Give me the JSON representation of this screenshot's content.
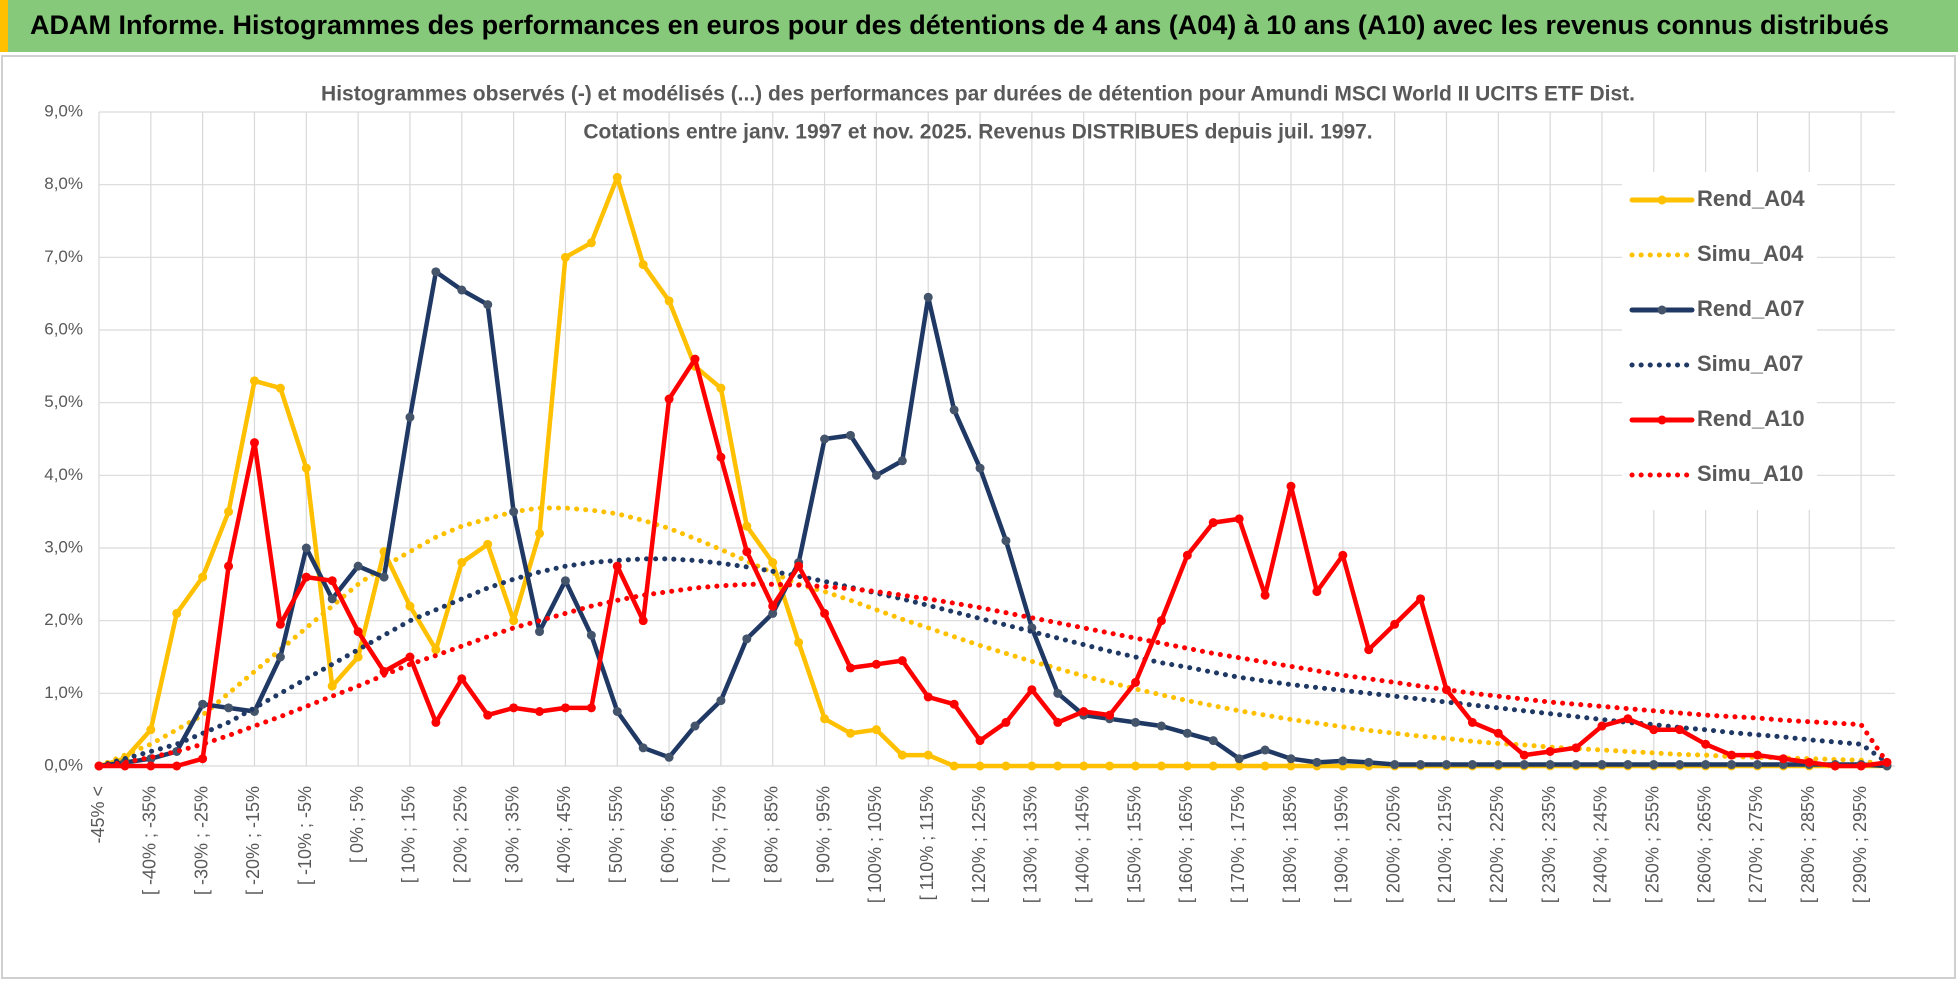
{
  "page_title": "ADAM Informe. Histogrammes des performances en euros pour des détentions de 4 ans (A04) à 10 ans (A10) avec les revenus connus distribués",
  "chart_data": {
    "type": "line",
    "title": "Histogrammes observés (-) et modélisés (...) des performances par durées de détention pour Amundi MSCI World II UCITS ETF Dist.",
    "subtitle": "Cotations entre janv. 1997 et nov. 2025. Revenus DISTRIBUES depuis juil. 1997.",
    "categories": [
      "-45% <",
      null,
      "[ -40% ; -35%",
      null,
      "[ -30% ; -25%",
      null,
      "[ -20% ; -15%",
      null,
      "[ -10% ; -5%",
      null,
      "[ 0% ; 5%",
      null,
      "[ 10% ; 15%",
      null,
      "[ 20% ; 25%",
      null,
      "[ 30% ; 35%",
      null,
      "[ 40% ; 45%",
      null,
      "[ 50% ; 55%",
      null,
      "[ 60% ; 65%",
      null,
      "[ 70% ; 75%",
      null,
      "[ 80% ; 85%",
      null,
      "[ 90% ; 95%",
      null,
      "[ 100% ; 105%",
      null,
      "[ 110% ; 115%",
      null,
      "[ 120% ; 125%",
      null,
      "[ 130% ; 135%",
      null,
      "[ 140% ; 145%",
      null,
      "[ 150% ; 155%",
      null,
      "[ 160% ; 165%",
      null,
      "[ 170% ; 175%",
      null,
      "[ 180% ; 185%",
      null,
      "[ 190% ; 195%",
      null,
      "[ 200% ; 205%",
      null,
      "[ 210% ; 215%",
      null,
      "[ 220% ; 225%",
      null,
      "[ 230% ; 235%",
      null,
      "[ 240% ; 245%",
      null,
      "[ 250% ; 255%",
      null,
      "[ 260% ; 265%",
      null,
      "[ 270% ; 275%",
      null,
      "[ 280% ; 285%",
      null,
      "[ 290% ; 295%",
      null
    ],
    "ylim": [
      0,
      9
    ],
    "yticks": [
      {
        "value": 0,
        "label": "0,0%"
      },
      {
        "value": 1,
        "label": "1,0%"
      },
      {
        "value": 2,
        "label": "2,0%"
      },
      {
        "value": 3,
        "label": "3,0%"
      },
      {
        "value": 4,
        "label": "4,0%"
      },
      {
        "value": 5,
        "label": "5,0%"
      },
      {
        "value": 6,
        "label": "6,0%"
      },
      {
        "value": 7,
        "label": "7,0%"
      },
      {
        "value": 8,
        "label": "8,0%"
      },
      {
        "value": 9,
        "label": "9,0%"
      }
    ],
    "grid": true,
    "legend": "upper right",
    "series": [
      {
        "name": "Rend_A04",
        "color": "#ffc000",
        "style": "solid",
        "markers": true,
        "values": [
          0,
          0.1,
          0.5,
          2.1,
          2.6,
          3.5,
          5.3,
          5.2,
          4.1,
          1.1,
          1.5,
          2.95,
          2.2,
          1.6,
          2.8,
          3.05,
          2.0,
          3.2,
          7.0,
          7.2,
          8.1,
          6.9,
          6.4,
          5.5,
          5.2,
          3.3,
          2.8,
          1.7,
          0.65,
          0.45,
          0.5,
          0.15,
          0.15,
          0,
          0,
          0,
          0,
          0,
          0,
          0,
          0,
          0,
          0,
          0,
          0,
          0,
          0,
          0,
          0,
          0,
          0,
          0,
          0,
          0,
          0,
          0,
          0,
          0,
          0,
          0,
          0,
          0,
          0,
          0,
          0,
          0,
          0,
          0,
          0,
          0
        ]
      },
      {
        "name": "Simu_A04",
        "color": "#ffc000",
        "style": "dotted",
        "markers": false,
        "values": [
          0,
          0.15,
          0.3,
          0.5,
          0.7,
          1.0,
          1.3,
          1.6,
          1.9,
          2.2,
          2.5,
          2.75,
          2.95,
          3.15,
          3.3,
          3.4,
          3.5,
          3.55,
          3.55,
          3.52,
          3.47,
          3.38,
          3.27,
          3.13,
          2.98,
          2.82,
          2.66,
          2.5,
          2.4,
          2.28,
          2.15,
          2.02,
          1.9,
          1.78,
          1.66,
          1.55,
          1.44,
          1.34,
          1.24,
          1.15,
          1.06,
          0.98,
          0.9,
          0.83,
          0.76,
          0.7,
          0.64,
          0.59,
          0.54,
          0.49,
          0.45,
          0.41,
          0.38,
          0.34,
          0.31,
          0.29,
          0.26,
          0.24,
          0.22,
          0.2,
          0.18,
          0.16,
          0.15,
          0.13,
          0.12,
          0.11,
          0.1,
          0.09,
          0.08,
          0
        ]
      },
      {
        "name": "Rend_A07",
        "color": "#1f3864",
        "marker_color": "#44546a",
        "style": "solid",
        "markers": true,
        "values": [
          0,
          0.05,
          0.1,
          0.2,
          0.85,
          0.8,
          0.75,
          1.5,
          3.0,
          2.3,
          2.75,
          2.6,
          4.8,
          6.8,
          6.55,
          6.35,
          3.5,
          1.85,
          2.55,
          1.8,
          0.75,
          0.25,
          0.12,
          0.55,
          0.9,
          1.75,
          2.1,
          2.8,
          4.5,
          4.55,
          4.0,
          4.2,
          6.45,
          4.9,
          4.1,
          3.1,
          1.9,
          1.0,
          0.7,
          0.65,
          0.6,
          0.55,
          0.45,
          0.35,
          0.1,
          0.22,
          0.1,
          0.05,
          0.07,
          0.05,
          0.02,
          0.02,
          0.02,
          0.02,
          0.02,
          0.02,
          0.02,
          0.02,
          0.02,
          0.02,
          0.02,
          0.02,
          0.02,
          0.02,
          0.02,
          0.02,
          0.02,
          0.02,
          0.02,
          0
        ]
      },
      {
        "name": "Simu_A07",
        "color": "#1f3864",
        "style": "dotted",
        "markers": false,
        "values": [
          0,
          0.1,
          0.2,
          0.3,
          0.45,
          0.6,
          0.8,
          1.0,
          1.2,
          1.4,
          1.6,
          1.8,
          2.0,
          2.15,
          2.3,
          2.45,
          2.57,
          2.67,
          2.75,
          2.8,
          2.83,
          2.85,
          2.85,
          2.83,
          2.79,
          2.74,
          2.68,
          2.61,
          2.54,
          2.46,
          2.38,
          2.3,
          2.21,
          2.12,
          2.03,
          1.94,
          1.85,
          1.76,
          1.67,
          1.58,
          1.5,
          1.42,
          1.36,
          1.29,
          1.22,
          1.17,
          1.12,
          1.08,
          1.04,
          1.0,
          0.96,
          0.92,
          0.88,
          0.84,
          0.8,
          0.76,
          0.72,
          0.68,
          0.64,
          0.6,
          0.57,
          0.53,
          0.5,
          0.46,
          0.43,
          0.4,
          0.36,
          0.33,
          0.3,
          0.05
        ]
      },
      {
        "name": "Rend_A10",
        "color": "#ff0000",
        "style": "solid",
        "markers": true,
        "values": [
          0,
          0,
          0,
          0,
          0.1,
          2.75,
          4.45,
          1.95,
          2.6,
          2.55,
          1.85,
          1.3,
          1.5,
          0.6,
          1.2,
          0.7,
          0.8,
          0.75,
          0.8,
          0.8,
          2.75,
          2.0,
          5.05,
          5.6,
          4.25,
          2.95,
          2.2,
          2.75,
          2.1,
          1.35,
          1.4,
          1.45,
          0.95,
          0.85,
          0.35,
          0.6,
          1.05,
          0.6,
          0.75,
          0.7,
          1.15,
          2.0,
          2.9,
          3.35,
          3.4,
          2.35,
          3.85,
          2.4,
          2.9,
          1.6,
          1.95,
          2.3,
          1.05,
          0.6,
          0.45,
          0.15,
          0.2,
          0.25,
          0.55,
          0.65,
          0.5,
          0.5,
          0.3,
          0.15,
          0.15,
          0.1,
          0.05,
          0,
          0,
          0.05
        ]
      },
      {
        "name": "Simu_A10",
        "color": "#ff0000",
        "style": "dotted",
        "markers": false,
        "values": [
          0,
          0.05,
          0.12,
          0.2,
          0.3,
          0.42,
          0.55,
          0.68,
          0.82,
          0.96,
          1.1,
          1.25,
          1.4,
          1.52,
          1.65,
          1.78,
          1.9,
          2.0,
          2.1,
          2.2,
          2.28,
          2.35,
          2.4,
          2.45,
          2.48,
          2.5,
          2.5,
          2.49,
          2.47,
          2.44,
          2.4,
          2.35,
          2.3,
          2.24,
          2.18,
          2.11,
          2.04,
          1.97,
          1.9,
          1.83,
          1.76,
          1.69,
          1.62,
          1.55,
          1.49,
          1.43,
          1.37,
          1.31,
          1.25,
          1.2,
          1.15,
          1.1,
          1.05,
          1.0,
          0.96,
          0.92,
          0.88,
          0.85,
          0.82,
          0.79,
          0.76,
          0.73,
          0.7,
          0.68,
          0.66,
          0.63,
          0.61,
          0.59,
          0.57,
          0.05
        ]
      }
    ]
  }
}
